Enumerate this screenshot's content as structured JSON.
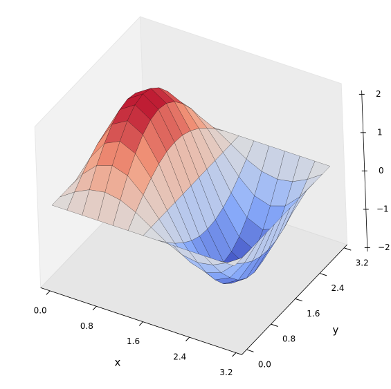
{
  "chart_data": {
    "type": "surface",
    "x": [
      0,
      0.26,
      0.52,
      0.79,
      1.05,
      1.31,
      1.57,
      1.83,
      2.09,
      2.36,
      2.62,
      2.88,
      3.14
    ],
    "y": [
      0,
      0.26,
      0.52,
      0.79,
      1.05,
      1.31,
      1.57,
      1.83,
      2.09,
      2.36,
      2.62,
      2.88,
      3.14
    ],
    "z": [
      [
        0,
        0,
        0,
        0,
        0,
        0,
        0,
        0,
        0,
        0,
        0,
        0,
        0
      ],
      [
        0,
        0.26,
        0.45,
        0.52,
        0.45,
        0.26,
        0,
        -0.26,
        -0.45,
        -0.52,
        -0.45,
        -0.26,
        0
      ],
      [
        0,
        0.5,
        0.87,
        1,
        0.87,
        0.5,
        0,
        -0.5,
        -0.87,
        -1,
        -0.87,
        -0.5,
        0
      ],
      [
        0,
        0.71,
        1.22,
        1.41,
        1.22,
        0.71,
        0,
        -0.71,
        -1.22,
        -1.41,
        -1.22,
        -0.71,
        0
      ],
      [
        0,
        0.87,
        1.5,
        1.73,
        1.5,
        0.87,
        0,
        -0.87,
        -1.5,
        -1.73,
        -1.5,
        -0.87,
        0
      ],
      [
        0,
        0.97,
        1.67,
        1.93,
        1.67,
        0.97,
        0,
        -0.97,
        -1.67,
        -1.93,
        -1.67,
        -0.97,
        0
      ],
      [
        0,
        1,
        1.73,
        2,
        1.73,
        1,
        0,
        -1,
        -1.73,
        -2,
        -1.73,
        -1,
        0
      ],
      [
        0,
        0.97,
        1.67,
        1.93,
        1.67,
        0.97,
        0,
        -0.97,
        -1.67,
        -1.93,
        -1.67,
        -0.97,
        0
      ],
      [
        0,
        0.87,
        1.5,
        1.73,
        1.5,
        0.87,
        0,
        -0.87,
        -1.5,
        -1.73,
        -1.5,
        -0.87,
        0
      ],
      [
        0,
        0.71,
        1.22,
        1.41,
        1.22,
        0.71,
        0,
        -0.71,
        -1.22,
        -1.41,
        -1.22,
        -0.71,
        0
      ],
      [
        0,
        0.5,
        0.87,
        1,
        0.87,
        0.5,
        0,
        -0.5,
        -0.87,
        -1,
        -0.87,
        -0.5,
        0
      ],
      [
        0,
        0.26,
        0.45,
        0.52,
        0.45,
        0.26,
        0,
        -0.26,
        -0.45,
        -0.52,
        -0.45,
        -0.26,
        0
      ],
      [
        0,
        0,
        0,
        0,
        0,
        0,
        0,
        0,
        0,
        0,
        0,
        0,
        0
      ]
    ],
    "xlim": [
      -0.16,
      3.3
    ],
    "ylim": [
      -0.16,
      3.3
    ],
    "zlim": [
      -2.1,
      2.1
    ],
    "xticks": [
      {
        "value": 0,
        "label": "0.0"
      },
      {
        "value": 0.8,
        "label": "0.8"
      },
      {
        "value": 1.6,
        "label": "1.6"
      },
      {
        "value": 2.4,
        "label": "2.4"
      },
      {
        "value": 3.2,
        "label": "3.2"
      }
    ],
    "yticks": [
      {
        "value": 0,
        "label": "0.0"
      },
      {
        "value": 0.8,
        "label": "0.8"
      },
      {
        "value": 1.6,
        "label": "1.6"
      },
      {
        "value": 2.4,
        "label": "2.4"
      },
      {
        "value": 3.2,
        "label": "3.2"
      }
    ],
    "zticks": [
      {
        "value": -2,
        "label": "−2"
      },
      {
        "value": -1,
        "label": "−1"
      },
      0,
      1,
      2
    ],
    "xlabel": "x",
    "ylabel": "y",
    "colormap": "coolwarm",
    "edgecolor": "#000000",
    "grid": false
  }
}
